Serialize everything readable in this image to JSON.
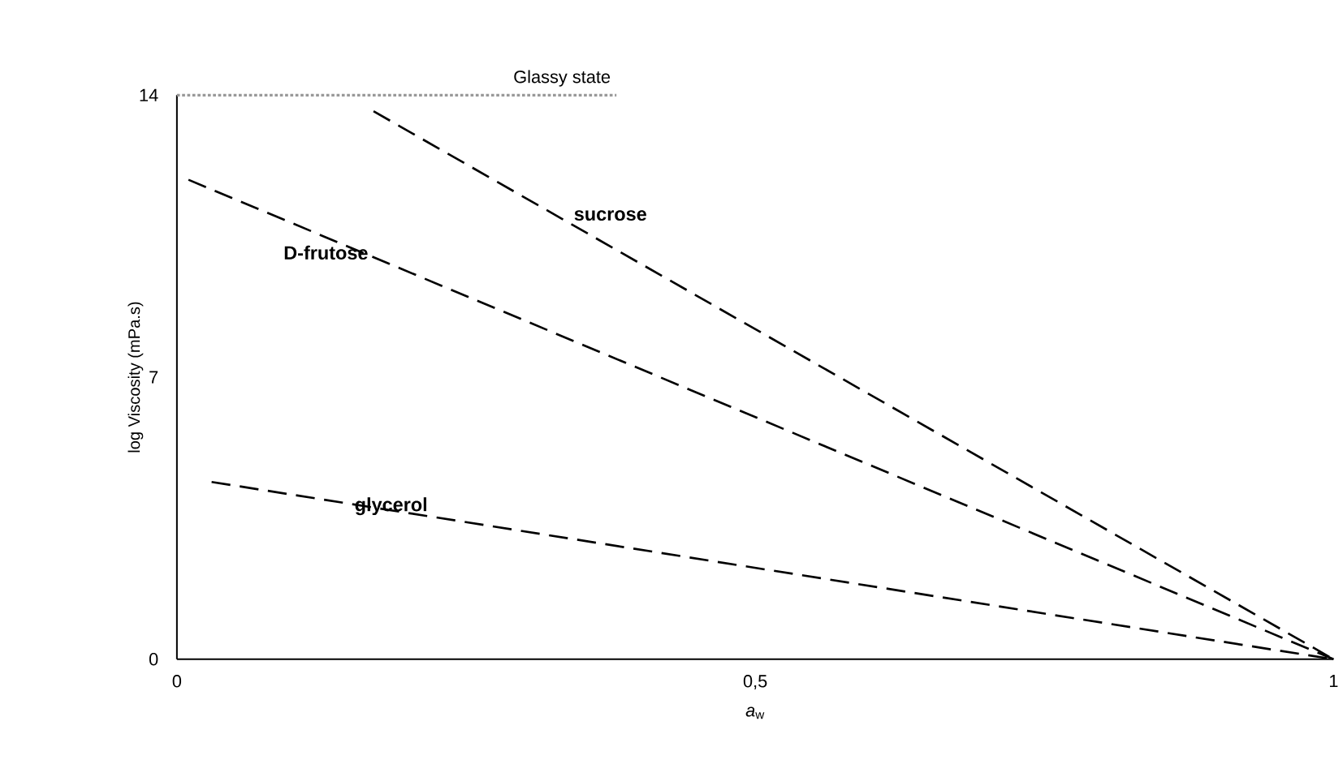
{
  "chart_data": {
    "type": "line",
    "xlabel": "*a*$_{w}$",
    "ylabel": "log Viscosity (mPa.s)",
    "xlim": [
      0,
      1
    ],
    "ylim": [
      0,
      14
    ],
    "xticks": [
      0,
      {
        "value": 0.5,
        "label": "0,5"
      },
      1
    ],
    "yticks": [
      0,
      7,
      14
    ],
    "grid": false,
    "legend": false,
    "series": [
      {
        "name": "Glassy state",
        "color": "#999999",
        "line_style": "dotted",
        "x": [
          0,
          0.38
        ],
        "values": [
          14,
          14
        ]
      },
      {
        "name": "sucrose",
        "color": "#000000",
        "line_style": "dashed",
        "x": [
          0.17,
          1
        ],
        "values": [
          13.6,
          0
        ]
      },
      {
        "name": "D-frutose",
        "color": "#000000",
        "line_style": "dashed",
        "x": [
          0.01,
          1
        ],
        "values": [
          11.9,
          0
        ]
      },
      {
        "name": "glycerol",
        "color": "#000000",
        "line_style": "dashed",
        "x": [
          0.03,
          1
        ],
        "values": [
          4.4,
          0
        ]
      }
    ]
  }
}
